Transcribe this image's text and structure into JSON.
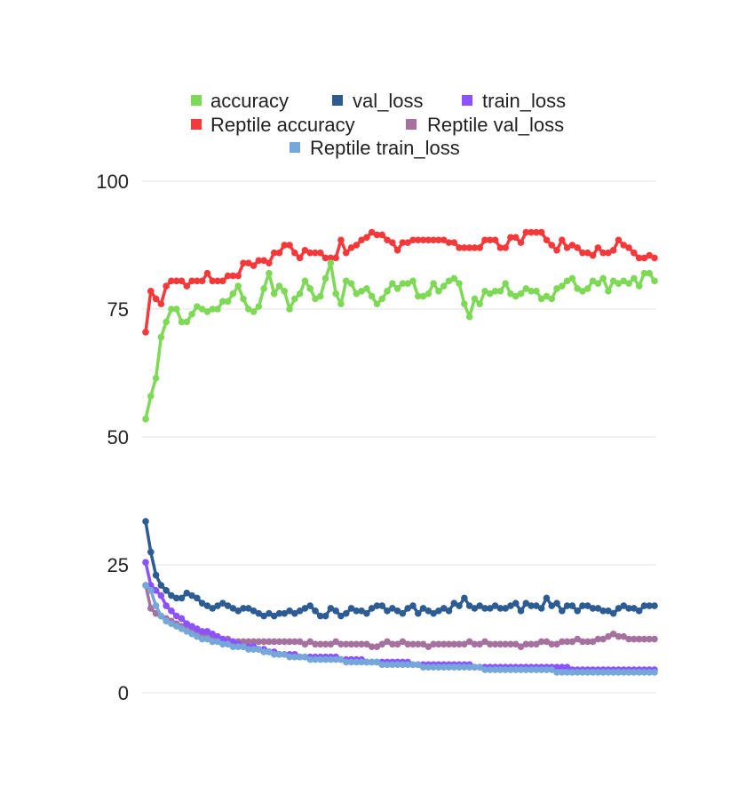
{
  "chart_data": {
    "type": "line",
    "title": "",
    "xlabel": "",
    "ylabel": "",
    "ylim": [
      0,
      100
    ],
    "yticks": [
      0,
      25,
      50,
      75,
      100
    ],
    "grid": true,
    "legend_position": "top",
    "x": [
      1,
      2,
      3,
      4,
      5,
      6,
      7,
      8,
      9,
      10,
      11,
      12,
      13,
      14,
      15,
      16,
      17,
      18,
      19,
      20,
      21,
      22,
      23,
      24,
      25,
      26,
      27,
      28,
      29,
      30,
      31,
      32,
      33,
      34,
      35,
      36,
      37,
      38,
      39,
      40,
      41,
      42,
      43,
      44,
      45,
      46,
      47,
      48,
      49,
      50,
      51,
      52,
      53,
      54,
      55,
      56,
      57,
      58,
      59,
      60,
      61,
      62,
      63,
      64,
      65,
      66,
      67,
      68,
      69,
      70,
      71,
      72,
      73,
      74,
      75,
      76,
      77,
      78,
      79,
      80,
      81,
      82,
      83,
      84,
      85,
      86,
      87,
      88,
      89,
      90,
      91,
      92,
      93,
      94,
      95,
      96,
      97,
      98,
      99,
      100
    ],
    "series": [
      {
        "name": "accuracy",
        "color": "#7ed957",
        "values": [
          53.5,
          58,
          61.5,
          69.5,
          72.5,
          75,
          75,
          72.5,
          72.5,
          74,
          75.5,
          75,
          74.5,
          75,
          75,
          76.5,
          76.5,
          78,
          79.5,
          77,
          75,
          74.5,
          75.5,
          79,
          82,
          78,
          79.5,
          78.5,
          75,
          77,
          78,
          80.5,
          79,
          77,
          77.5,
          81,
          84,
          78,
          76,
          80.5,
          80,
          78,
          78.5,
          79,
          77.5,
          76,
          77,
          78.5,
          80,
          79,
          80,
          80,
          80.5,
          77.5,
          77.5,
          78,
          80,
          78.5,
          79.5,
          80.5,
          81,
          80,
          76,
          73.5,
          77,
          76,
          78.5,
          78,
          78.5,
          78.5,
          80,
          78,
          77.5,
          78,
          79,
          78.5,
          78.5,
          77,
          77.5,
          77,
          79,
          79.5,
          80.5,
          81,
          79,
          78.5,
          79,
          80.5,
          80,
          81,
          78.5,
          80.5,
          80,
          80.5,
          80,
          81,
          79.5,
          82,
          82,
          80.5
        ]
      },
      {
        "name": "val_loss",
        "color": "#2d5c94",
        "values": [
          33.5,
          27.5,
          23,
          21,
          20,
          19,
          18.5,
          18.5,
          19.5,
          19,
          18.5,
          17.5,
          17,
          16.5,
          17,
          17.5,
          17,
          16.5,
          16,
          16.5,
          16.5,
          16,
          15.5,
          15,
          15.5,
          15,
          15.5,
          15.5,
          16,
          15.5,
          16,
          16.5,
          17,
          16,
          15,
          15,
          16.5,
          16,
          15,
          15.5,
          16.5,
          16,
          16,
          15.5,
          16.5,
          17,
          17,
          16,
          16.5,
          16,
          15.5,
          16.5,
          17,
          15.5,
          16.5,
          16,
          15.5,
          16,
          16.5,
          16,
          17.5,
          17,
          18.5,
          17,
          16.5,
          17,
          16.5,
          16.5,
          17,
          16.5,
          16.5,
          17,
          17.5,
          16,
          17.5,
          17,
          17,
          16.5,
          18.5,
          17,
          17.5,
          16,
          17,
          17,
          16,
          17,
          17,
          16.5,
          16.5,
          16,
          16,
          15.5,
          16.5,
          17,
          16.5,
          16.5,
          16,
          17,
          17,
          17
        ]
      },
      {
        "name": "train_loss",
        "color": "#8c52ff",
        "values": [
          25.5,
          21,
          20,
          19,
          17,
          16,
          15,
          14.5,
          13.5,
          13,
          12.5,
          12,
          12,
          11.5,
          11,
          10.5,
          10,
          10,
          9.5,
          9,
          9,
          9,
          8.5,
          8.5,
          8,
          8,
          7.5,
          7.5,
          7.5,
          7.5,
          7,
          7,
          7,
          7,
          7,
          7,
          7,
          7,
          6.5,
          6.5,
          6.5,
          6.5,
          6.5,
          6,
          6,
          6,
          6,
          6,
          6,
          6,
          6,
          6,
          5.5,
          5.5,
          5.5,
          5.5,
          5.5,
          5.5,
          5.5,
          5.5,
          5.5,
          5.5,
          5.5,
          5.5,
          5,
          5,
          5,
          5,
          5,
          5,
          5,
          5,
          5,
          5,
          5,
          5,
          5,
          5,
          5,
          5,
          5,
          5,
          5,
          4.5,
          4.5,
          4.5,
          4.5,
          4.5,
          4.5,
          4.5,
          4.5,
          4.5,
          4.5,
          4.5,
          4.5,
          4.5,
          4.5,
          4.5,
          4.5,
          4.5
        ]
      },
      {
        "name": "Reptile accuracy",
        "color": "#f5393a",
        "values": [
          70.5,
          78.5,
          77,
          76,
          79.5,
          80.5,
          80.5,
          80.5,
          79.5,
          80.5,
          80.5,
          80.5,
          82,
          80.5,
          80.5,
          80.5,
          81.5,
          81.5,
          81.5,
          84,
          84,
          83.5,
          84.5,
          84.5,
          84,
          86,
          86,
          87.5,
          87.5,
          86,
          85,
          86.5,
          86,
          86,
          86,
          85,
          85,
          85,
          88.5,
          86,
          87,
          87.5,
          88.5,
          89,
          90,
          89.5,
          89.5,
          88.5,
          88,
          86.5,
          88,
          88,
          88.5,
          88.5,
          88.5,
          88.5,
          88.5,
          88.5,
          88.5,
          88,
          88,
          87,
          87,
          87,
          87,
          87,
          88.5,
          88.5,
          88.5,
          87,
          87,
          89,
          89,
          88,
          90,
          90,
          90,
          90,
          88.5,
          87.5,
          86.5,
          88.5,
          87,
          87.5,
          87,
          86,
          86,
          85.5,
          87,
          86,
          86,
          86.5,
          88.5,
          87.5,
          87,
          86,
          85,
          85,
          85.5,
          85
        ]
      },
      {
        "name": "Reptile val_loss",
        "color": "#a6719e",
        "values": [
          21,
          16.5,
          15.5,
          15,
          14.5,
          14,
          13.5,
          13,
          12.5,
          12,
          11.5,
          11.5,
          11,
          11,
          10.5,
          10.5,
          10.5,
          10,
          10,
          10,
          10,
          10,
          10,
          10,
          10,
          10,
          10,
          10,
          10,
          10,
          10,
          9.5,
          10,
          9.5,
          9.5,
          9.5,
          9.5,
          10,
          9.5,
          9.5,
          9.5,
          9.5,
          9.5,
          9.5,
          9,
          9,
          9.5,
          10,
          9.5,
          9.5,
          10,
          9.5,
          9.5,
          9.5,
          9.5,
          9,
          9.5,
          9.5,
          9.5,
          9.5,
          9.5,
          9.5,
          9.5,
          10,
          9.5,
          9.5,
          10,
          9.5,
          9.5,
          9.5,
          9.5,
          9.5,
          9.5,
          9,
          9.5,
          9.5,
          9.5,
          10,
          10,
          9.5,
          9.5,
          10,
          10,
          10,
          10.5,
          10,
          10,
          10,
          10.5,
          10.5,
          11,
          11.5,
          11,
          11,
          10.5,
          10.5,
          10.5,
          10.5,
          10.5,
          10.5
        ]
      },
      {
        "name": "Reptile train_loss",
        "color": "#75a7da",
        "values": [
          21,
          20,
          17,
          15,
          14,
          13.5,
          13,
          12.5,
          12,
          11.5,
          11,
          10.5,
          10.5,
          10,
          10,
          9.5,
          9.5,
          9,
          9,
          9,
          8.5,
          8.5,
          8.5,
          8,
          8,
          7.5,
          7.5,
          7.5,
          7,
          7,
          7,
          7,
          6.5,
          6.5,
          6.5,
          6.5,
          6.5,
          6.5,
          6.5,
          6,
          6,
          6,
          6,
          6,
          6,
          6,
          5.5,
          5.5,
          5.5,
          5.5,
          5.5,
          5.5,
          5.5,
          5.5,
          5,
          5,
          5,
          5,
          5,
          5,
          5,
          5,
          5,
          5,
          5,
          5,
          4.5,
          4.5,
          4.5,
          4.5,
          4.5,
          4.5,
          4.5,
          4.5,
          4.5,
          4.5,
          4.5,
          4.5,
          4.5,
          4.5,
          4,
          4,
          4,
          4,
          4,
          4,
          4,
          4,
          4,
          4,
          4,
          4,
          4,
          4,
          4,
          4,
          4,
          4,
          4,
          4
        ]
      }
    ]
  }
}
